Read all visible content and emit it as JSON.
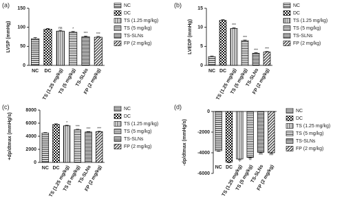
{
  "chart_data": [
    {
      "type": "bar",
      "panel": "(a)",
      "ylabel": "LVSP (mmHg)",
      "categories": [
        "NC",
        "DC",
        "TS (1.25 mg/kg)",
        "TS (5 mg/kg)",
        "TS-SLNs",
        "FP (2 mg/kg)"
      ],
      "values": [
        70,
        95,
        90,
        87,
        75,
        74
      ],
      "errors": [
        3,
        2,
        2,
        2,
        2,
        2
      ],
      "annotations": [
        null,
        null,
        "ns",
        "*",
        "***",
        "***"
      ],
      "patterns": [
        "hlines",
        "checker",
        "vlines",
        "hfine",
        "hdense",
        "diag"
      ],
      "ylim": [
        0,
        150
      ],
      "yticks": [
        0,
        50,
        100,
        150
      ],
      "legend": true
    },
    {
      "type": "bar",
      "panel": "(b)",
      "ylabel": "LVEDP (mmHg)",
      "categories": [
        "NC",
        "DC",
        "TS (1.25 mg/kg)",
        "TS (5 mg/kg)",
        "TS-SLNs",
        "FP (2 mg/kg)"
      ],
      "values": [
        2.3,
        11.8,
        9.7,
        6.5,
        3.2,
        3.5
      ],
      "errors": [
        0.15,
        0.2,
        0.2,
        0.15,
        0.15,
        0.15
      ],
      "annotations": [
        null,
        null,
        "***",
        "***",
        "***",
        "***"
      ],
      "patterns": [
        "hlines",
        "checker",
        "vlines",
        "hfine",
        "hdense",
        "diag"
      ],
      "ylim": [
        0,
        15
      ],
      "yticks": [
        0,
        5,
        10,
        15
      ],
      "legend": true
    },
    {
      "type": "bar",
      "panel": "(c)",
      "ylabel": "+dp/dtmax (mmHg/s)",
      "categories": [
        "NC",
        "DC",
        "TS (1.25 mg/kg)",
        "TS (5 mg/kg)",
        "TS-SLNs",
        "FP (2 mg/kg)"
      ],
      "values": [
        4500,
        5800,
        5600,
        5000,
        4650,
        4700
      ],
      "errors": [
        60,
        100,
        80,
        70,
        60,
        60
      ],
      "annotations": [
        null,
        null,
        "*",
        "***",
        "***",
        "***"
      ],
      "patterns": [
        "hlines",
        "checker",
        "vlines",
        "hfine",
        "hdense",
        "diag"
      ],
      "ylim": [
        0,
        8000
      ],
      "yticks": [
        0,
        2000,
        4000,
        6000,
        8000
      ],
      "legend": true
    },
    {
      "type": "bar",
      "panel": "(d)",
      "ylabel": "-dp/dtmax (mmHg/s)",
      "categories": [
        "NC",
        "DC",
        "TS (1.25 mg/kg)",
        "TS (5 mg/kg)",
        "TS-SLNs",
        "FP (2 mg/kg)"
      ],
      "values": [
        -3800,
        -4900,
        -4600,
        -4450,
        -3950,
        -4000
      ],
      "errors": [
        60,
        80,
        80,
        70,
        60,
        60
      ],
      "annotations": [
        null,
        null,
        "*",
        "**",
        "***",
        "***"
      ],
      "patterns": [
        "hlines",
        "checker",
        "vlines",
        "hfine",
        "hdense",
        "diag"
      ],
      "ylim": [
        -6000,
        0
      ],
      "yticks": [
        0,
        -2000,
        -4000,
        -6000
      ],
      "legend": true
    }
  ]
}
